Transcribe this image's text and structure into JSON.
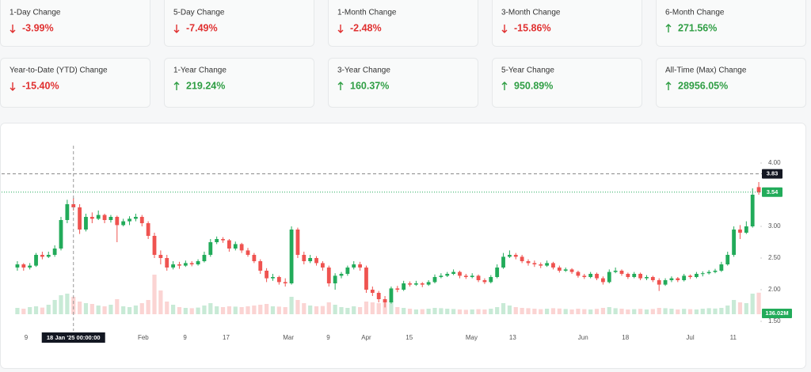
{
  "cards": [
    {
      "label": "1-Day Change",
      "value": "-3.99%",
      "direction": "down"
    },
    {
      "label": "5-Day Change",
      "value": "-7.49%",
      "direction": "down"
    },
    {
      "label": "1-Month Change",
      "value": "-2.48%",
      "direction": "down"
    },
    {
      "label": "3-Month Change",
      "value": "-15.86%",
      "direction": "down"
    },
    {
      "label": "6-Month Change",
      "value": "271.56%",
      "direction": "up"
    },
    {
      "label": "Year-to-Date (YTD) Change",
      "value": "-15.40%",
      "direction": "down"
    },
    {
      "label": "1-Year Change",
      "value": "219.24%",
      "direction": "up"
    },
    {
      "label": "3-Year Change",
      "value": "160.37%",
      "direction": "up"
    },
    {
      "label": "5-Year Change",
      "value": "950.89%",
      "direction": "up"
    },
    {
      "label": "All-Time (Max) Change",
      "value": "28956.05%",
      "direction": "up"
    }
  ],
  "chart_data": {
    "type": "candlestick",
    "ohlc": [
      [
        2.35,
        2.45,
        2.3,
        2.4
      ],
      [
        2.4,
        2.42,
        2.3,
        2.35
      ],
      [
        2.35,
        2.42,
        2.32,
        2.38
      ],
      [
        2.38,
        2.58,
        2.36,
        2.55
      ],
      [
        2.55,
        2.6,
        2.48,
        2.52
      ],
      [
        2.52,
        2.6,
        2.5,
        2.55
      ],
      [
        2.55,
        2.7,
        2.52,
        2.65
      ],
      [
        2.65,
        3.15,
        2.62,
        3.1
      ],
      [
        3.1,
        3.42,
        3.05,
        3.35
      ],
      [
        3.35,
        3.45,
        3.25,
        3.3
      ],
      [
        3.3,
        3.35,
        2.88,
        2.95
      ],
      [
        2.95,
        3.2,
        2.92,
        3.15
      ],
      [
        3.15,
        3.22,
        3.05,
        3.12
      ],
      [
        3.12,
        3.25,
        3.1,
        3.18
      ],
      [
        3.18,
        3.2,
        3.05,
        3.1
      ],
      [
        3.1,
        3.18,
        3.06,
        3.15
      ],
      [
        3.15,
        3.17,
        2.75,
        3.02
      ],
      [
        3.02,
        3.12,
        3.0,
        3.08
      ],
      [
        3.08,
        3.16,
        3.02,
        3.12
      ],
      [
        3.12,
        3.2,
        3.08,
        3.15
      ],
      [
        3.15,
        3.18,
        3.0,
        3.05
      ],
      [
        3.05,
        3.08,
        2.8,
        2.85
      ],
      [
        2.85,
        2.9,
        2.5,
        2.55
      ],
      [
        2.55,
        2.62,
        2.4,
        2.5
      ],
      [
        2.5,
        2.55,
        2.3,
        2.35
      ],
      [
        2.35,
        2.45,
        2.32,
        2.4
      ],
      [
        2.4,
        2.44,
        2.33,
        2.38
      ],
      [
        2.38,
        2.46,
        2.36,
        2.42
      ],
      [
        2.42,
        2.45,
        2.37,
        2.4
      ],
      [
        2.4,
        2.48,
        2.38,
        2.45
      ],
      [
        2.45,
        2.6,
        2.43,
        2.55
      ],
      [
        2.55,
        2.8,
        2.52,
        2.75
      ],
      [
        2.75,
        2.84,
        2.72,
        2.8
      ],
      [
        2.8,
        2.83,
        2.74,
        2.78
      ],
      [
        2.78,
        2.8,
        2.6,
        2.65
      ],
      [
        2.65,
        2.76,
        2.62,
        2.72
      ],
      [
        2.72,
        2.74,
        2.58,
        2.62
      ],
      [
        2.62,
        2.66,
        2.52,
        2.55
      ],
      [
        2.55,
        2.58,
        2.42,
        2.45
      ],
      [
        2.45,
        2.48,
        2.25,
        2.3
      ],
      [
        2.3,
        2.34,
        2.12,
        2.18
      ],
      [
        2.18,
        2.25,
        2.14,
        2.2
      ],
      [
        2.2,
        2.22,
        2.08,
        2.12
      ],
      [
        2.12,
        2.18,
        2.05,
        2.1
      ],
      [
        2.1,
        3.0,
        2.08,
        2.95
      ],
      [
        2.95,
        2.98,
        2.5,
        2.55
      ],
      [
        2.55,
        2.6,
        2.4,
        2.45
      ],
      [
        2.45,
        2.55,
        2.42,
        2.5
      ],
      [
        2.5,
        2.53,
        2.38,
        2.42
      ],
      [
        2.42,
        2.45,
        2.3,
        2.35
      ],
      [
        2.35,
        2.38,
        2.05,
        2.1
      ],
      [
        2.1,
        2.26,
        2.0,
        2.22
      ],
      [
        2.22,
        2.28,
        2.18,
        2.25
      ],
      [
        2.25,
        2.38,
        2.22,
        2.35
      ],
      [
        2.35,
        2.45,
        2.32,
        2.4
      ],
      [
        2.4,
        2.44,
        2.3,
        2.35
      ],
      [
        2.35,
        2.38,
        1.95,
        2.0
      ],
      [
        2.0,
        2.05,
        1.9,
        1.95
      ],
      [
        1.95,
        1.98,
        1.8,
        1.85
      ],
      [
        1.85,
        1.9,
        1.72,
        1.8
      ],
      [
        1.8,
        2.05,
        1.78,
        2.02
      ],
      [
        2.02,
        2.06,
        1.96,
        2.0
      ],
      [
        2.0,
        2.14,
        1.98,
        2.1
      ],
      [
        2.1,
        2.13,
        2.05,
        2.08
      ],
      [
        2.08,
        2.14,
        2.06,
        2.1
      ],
      [
        2.1,
        2.12,
        2.04,
        2.08
      ],
      [
        2.08,
        2.15,
        2.06,
        2.12
      ],
      [
        2.12,
        2.24,
        2.1,
        2.2
      ],
      [
        2.2,
        2.26,
        2.18,
        2.22
      ],
      [
        2.22,
        2.28,
        2.2,
        2.25
      ],
      [
        2.25,
        2.32,
        2.23,
        2.28
      ],
      [
        2.28,
        2.3,
        2.18,
        2.22
      ],
      [
        2.22,
        2.25,
        2.17,
        2.2
      ],
      [
        2.2,
        2.26,
        2.18,
        2.22
      ],
      [
        2.22,
        2.24,
        2.12,
        2.15
      ],
      [
        2.15,
        2.18,
        2.09,
        2.12
      ],
      [
        2.12,
        2.23,
        2.1,
        2.2
      ],
      [
        2.2,
        2.4,
        2.18,
        2.35
      ],
      [
        2.35,
        2.58,
        2.33,
        2.52
      ],
      [
        2.52,
        2.62,
        2.5,
        2.55
      ],
      [
        2.55,
        2.58,
        2.48,
        2.52
      ],
      [
        2.52,
        2.55,
        2.42,
        2.45
      ],
      [
        2.45,
        2.48,
        2.38,
        2.42
      ],
      [
        2.42,
        2.46,
        2.36,
        2.4
      ],
      [
        2.4,
        2.43,
        2.34,
        2.38
      ],
      [
        2.38,
        2.46,
        2.36,
        2.42
      ],
      [
        2.42,
        2.44,
        2.32,
        2.35
      ],
      [
        2.35,
        2.38,
        2.27,
        2.3
      ],
      [
        2.3,
        2.35,
        2.28,
        2.32
      ],
      [
        2.32,
        2.34,
        2.25,
        2.28
      ],
      [
        2.28,
        2.3,
        2.19,
        2.22
      ],
      [
        2.22,
        2.25,
        2.17,
        2.2
      ],
      [
        2.2,
        2.28,
        2.18,
        2.25
      ],
      [
        2.25,
        2.27,
        2.15,
        2.18
      ],
      [
        2.18,
        2.21,
        2.08,
        2.12
      ],
      [
        2.12,
        2.32,
        2.1,
        2.28
      ],
      [
        2.28,
        2.35,
        2.26,
        2.3
      ],
      [
        2.3,
        2.32,
        2.22,
        2.25
      ],
      [
        2.25,
        2.27,
        2.17,
        2.2
      ],
      [
        2.2,
        2.28,
        2.18,
        2.25
      ],
      [
        2.25,
        2.27,
        2.15,
        2.18
      ],
      [
        2.18,
        2.23,
        2.15,
        2.2
      ],
      [
        2.2,
        2.22,
        2.12,
        2.15
      ],
      [
        2.15,
        2.18,
        1.98,
        2.08
      ],
      [
        2.08,
        2.18,
        2.06,
        2.15
      ],
      [
        2.15,
        2.21,
        2.12,
        2.18
      ],
      [
        2.18,
        2.2,
        2.12,
        2.15
      ],
      [
        2.15,
        2.25,
        2.13,
        2.22
      ],
      [
        2.22,
        2.24,
        2.17,
        2.2
      ],
      [
        2.2,
        2.28,
        2.18,
        2.25
      ],
      [
        2.25,
        2.29,
        2.21,
        2.26
      ],
      [
        2.26,
        2.31,
        2.24,
        2.28
      ],
      [
        2.28,
        2.33,
        2.26,
        2.3
      ],
      [
        2.3,
        2.44,
        2.28,
        2.4
      ],
      [
        2.4,
        2.6,
        2.38,
        2.55
      ],
      [
        2.55,
        3.0,
        2.52,
        2.95
      ],
      [
        2.95,
        3.02,
        2.8,
        2.9
      ],
      [
        2.9,
        3.08,
        2.88,
        3.0
      ],
      [
        3.0,
        3.6,
        2.98,
        3.5
      ],
      [
        3.62,
        3.7,
        3.5,
        3.54
      ]
    ],
    "volume": [
      40,
      35,
      45,
      50,
      42,
      60,
      90,
      120,
      130,
      110,
      80,
      70,
      65,
      55,
      50,
      60,
      95,
      50,
      45,
      55,
      70,
      90,
      250,
      150,
      80,
      60,
      45,
      40,
      38,
      42,
      55,
      70,
      50,
      45,
      50,
      48,
      45,
      50,
      55,
      60,
      65,
      50,
      48,
      45,
      110,
      90,
      70,
      55,
      50,
      52,
      75,
      60,
      45,
      40,
      50,
      45,
      80,
      75,
      70,
      95,
      85,
      45,
      40,
      35,
      30,
      32,
      35,
      40,
      38,
      35,
      33,
      30,
      28,
      30,
      32,
      30,
      35,
      45,
      70,
      55,
      45,
      40,
      38,
      35,
      32,
      35,
      38,
      36,
      33,
      30,
      35,
      32,
      30,
      34,
      40,
      45,
      38,
      35,
      30,
      32,
      34,
      30,
      33,
      40,
      38,
      35,
      30,
      34,
      32,
      30,
      35,
      38,
      36,
      40,
      55,
      90,
      75,
      70,
      130,
      136.02
    ],
    "volume_label": "136.02M",
    "volume_lim": [
      0,
      300
    ],
    "xlim": [
      -0.5,
      119.5
    ],
    "xticks": [
      {
        "value": 1.4,
        "label": "9"
      },
      {
        "value": 20.2,
        "label": "Feb"
      },
      {
        "value": 26.9,
        "label": "9"
      },
      {
        "value": 33.5,
        "label": "17"
      },
      {
        "value": 43.5,
        "label": "Mar"
      },
      {
        "value": 49.9,
        "label": "9"
      },
      {
        "value": 56,
        "label": "Apr"
      },
      {
        "value": 62.9,
        "label": "15"
      },
      {
        "value": 72.9,
        "label": "May"
      },
      {
        "value": 79.5,
        "label": "13"
      },
      {
        "value": 90.8,
        "label": "Jun"
      },
      {
        "value": 97.6,
        "label": "18"
      },
      {
        "value": 108,
        "label": "Jul"
      },
      {
        "value": 114.9,
        "label": "11"
      }
    ],
    "ylim": [
      1.45,
      4.25
    ],
    "yticks": [
      {
        "value": 4,
        "label": "4.00"
      },
      {
        "value": 3,
        "label": "3.00"
      },
      {
        "value": 2.5,
        "label": "2.50"
      },
      {
        "value": 2,
        "label": "2.00"
      },
      {
        "value": 1.5,
        "label": "1.50"
      }
    ],
    "price_lines": [
      {
        "value": 3.83,
        "label": "3.83",
        "color": "#131722"
      },
      {
        "value": 3.54,
        "label": "3.54",
        "color": "#22ab5a"
      }
    ],
    "crosshair": {
      "value": 9,
      "label": "18 Jan '25 00:00:00"
    },
    "up_color": "#22ab5a",
    "down_color": "#ef5350"
  }
}
